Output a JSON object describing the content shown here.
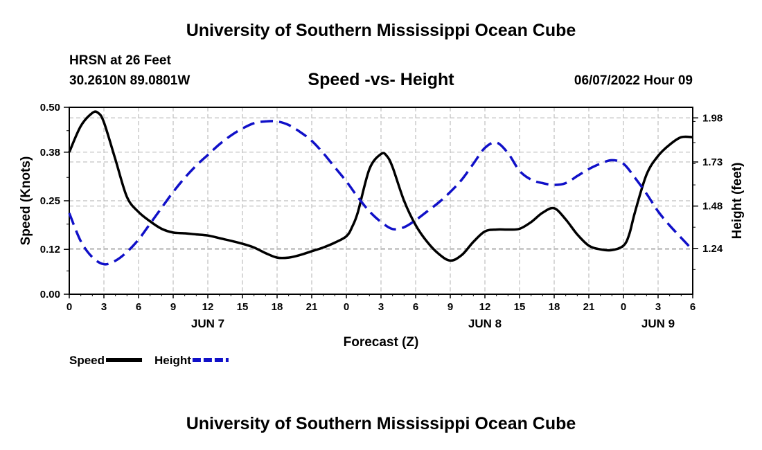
{
  "header": {
    "title": "University of Southern Mississippi Ocean Cube",
    "station": "HRSN at 26 Feet",
    "coords": "30.2610N  89.0801W",
    "subtitle": "Speed -vs- Height",
    "datetime": "06/07/2022 Hour 09",
    "footer_title": "University of Southern Mississippi Ocean Cube"
  },
  "chart_data": {
    "type": "line",
    "xlabel": "Forecast (Z)",
    "ylabel": "Speed (Knots)",
    "y2label": "Height (feet)",
    "x_hours_range": [
      0,
      54
    ],
    "ylim": [
      0,
      0.5
    ],
    "y2lim": [
      0.98,
      2.04
    ],
    "yticks": [
      "0.00",
      "0.12",
      "0.25",
      "0.38",
      "0.50"
    ],
    "y2ticks": [
      "1.24",
      "1.48",
      "1.73",
      "1.98"
    ],
    "xtick_labels": [
      "0",
      "3",
      "6",
      "9",
      "12",
      "15",
      "18",
      "21",
      "0",
      "3",
      "6",
      "9",
      "12",
      "15",
      "18",
      "21",
      "0",
      "3",
      "6"
    ],
    "date_labels": [
      {
        "label": "JUN 7",
        "hour": 12
      },
      {
        "label": "JUN 8",
        "hour": 36
      },
      {
        "label": "JUN 9",
        "hour": 51
      }
    ],
    "series": [
      {
        "name": "Speed",
        "color": "#000000",
        "style": "solid",
        "axis": "left",
        "x": [
          0,
          1,
          2,
          2.5,
          3,
          4,
          5,
          6,
          7,
          8,
          9,
          10,
          11,
          12,
          13,
          14,
          15,
          16,
          17,
          18,
          19,
          20,
          21,
          22,
          23,
          24,
          24.5,
          25,
          26,
          27,
          27.5,
          28,
          29,
          30,
          31,
          32,
          33,
          34,
          35,
          36,
          37,
          38,
          39,
          40,
          41,
          42,
          43,
          44,
          45,
          46,
          47,
          48,
          48.5,
          49,
          50,
          51,
          52,
          53,
          54
        ],
        "values": [
          0.38,
          0.45,
          0.485,
          0.485,
          0.46,
          0.36,
          0.26,
          0.22,
          0.195,
          0.175,
          0.165,
          0.163,
          0.16,
          0.157,
          0.15,
          0.143,
          0.135,
          0.125,
          0.11,
          0.098,
          0.098,
          0.105,
          0.115,
          0.125,
          0.138,
          0.155,
          0.18,
          0.22,
          0.335,
          0.375,
          0.37,
          0.34,
          0.25,
          0.185,
          0.14,
          0.108,
          0.09,
          0.105,
          0.14,
          0.168,
          0.173,
          0.173,
          0.175,
          0.193,
          0.218,
          0.23,
          0.2,
          0.16,
          0.13,
          0.12,
          0.118,
          0.13,
          0.16,
          0.22,
          0.32,
          0.37,
          0.4,
          0.42,
          0.42
        ]
      },
      {
        "name": "Height",
        "color": "#1010c8",
        "style": "dashed",
        "axis": "right",
        "x": [
          0,
          1,
          2,
          3,
          4,
          5,
          6,
          7,
          8,
          9,
          10,
          11,
          12,
          13,
          14,
          15,
          16,
          17,
          18,
          19,
          20,
          21,
          22,
          23,
          24,
          25,
          26,
          27,
          28,
          29,
          30,
          31,
          32,
          33,
          34,
          35,
          36,
          37,
          38,
          39,
          40,
          41,
          42,
          43,
          44,
          45,
          46,
          47,
          48,
          49,
          50,
          51,
          52,
          53,
          54
        ],
        "values": [
          1.44,
          1.28,
          1.19,
          1.15,
          1.17,
          1.22,
          1.29,
          1.38,
          1.47,
          1.56,
          1.64,
          1.71,
          1.77,
          1.83,
          1.88,
          1.92,
          1.95,
          1.96,
          1.96,
          1.94,
          1.9,
          1.85,
          1.78,
          1.7,
          1.62,
          1.53,
          1.45,
          1.39,
          1.35,
          1.36,
          1.4,
          1.45,
          1.5,
          1.56,
          1.63,
          1.72,
          1.81,
          1.84,
          1.78,
          1.68,
          1.63,
          1.61,
          1.6,
          1.61,
          1.65,
          1.69,
          1.72,
          1.74,
          1.72,
          1.64,
          1.55,
          1.45,
          1.37,
          1.3,
          1.23
        ]
      }
    ],
    "legend": {
      "placement": "bottom-left",
      "items": [
        "Speed",
        "Height"
      ]
    }
  }
}
